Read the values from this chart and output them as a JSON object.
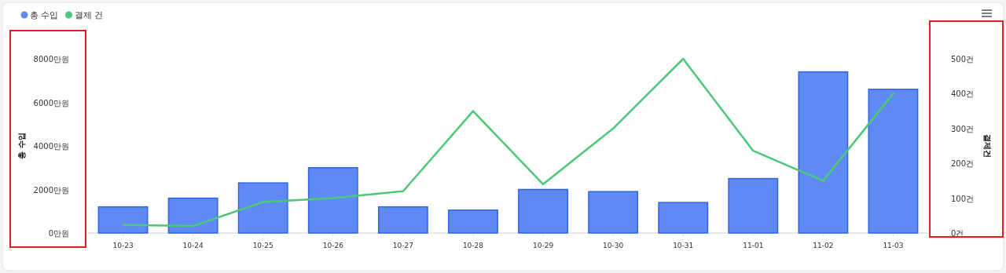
{
  "chart_data": {
    "type": "bar",
    "categories": [
      "10-23",
      "10-24",
      "10-25",
      "10-26",
      "10-27",
      "10-28",
      "10-29",
      "10-30",
      "10-31",
      "11-01",
      "11-02",
      "11-03"
    ],
    "series": [
      {
        "name": "총 수입",
        "color": "#5f8af5",
        "values": [
          1200,
          1600,
          2300,
          3000,
          1200,
          1050,
          2000,
          1900,
          1400,
          2500,
          7400,
          6600
        ]
      },
      {
        "name": "결제 건",
        "type": "line",
        "axis": "y2",
        "color": "#4cc878",
        "values": [
          23,
          20,
          89,
          100,
          120,
          350,
          140,
          300,
          500,
          236,
          150,
          400
        ]
      }
    ],
    "ylabel": "총 수입",
    "y2label": "결제건",
    "ylim": [
      0,
      8000
    ],
    "yticks": [
      {
        "value": 0,
        "label": "0만원"
      },
      {
        "value": 2000,
        "label": "2000만원"
      },
      {
        "value": 4000,
        "label": "4000만원"
      },
      {
        "value": 6000,
        "label": "6000만원"
      },
      {
        "value": 8000,
        "label": "8000만원"
      }
    ],
    "y2lim": [
      0,
      500
    ],
    "y2ticks": [
      {
        "value": 0,
        "label": "0건"
      },
      {
        "value": 100,
        "label": "100건"
      },
      {
        "value": 200,
        "label": "200건"
      },
      {
        "value": 300,
        "label": "300건"
      },
      {
        "value": 400,
        "label": "400건"
      },
      {
        "value": 500,
        "label": "500건"
      }
    ],
    "legend": "top left",
    "grid": false,
    "marker": "none",
    "line_style": "solid"
  }
}
